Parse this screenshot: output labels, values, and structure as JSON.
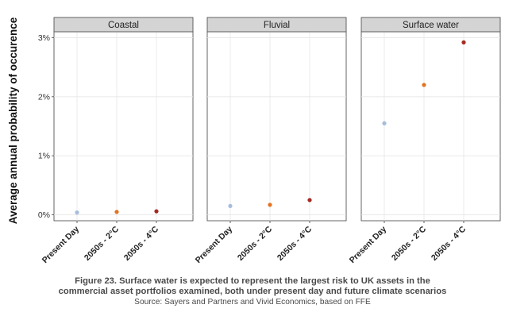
{
  "chart_data": {
    "type": "scatter",
    "ylabel": "Average annual probability of occurence",
    "ylim": [
      -0.1,
      3.1
    ],
    "yticks": [
      "0%",
      "1%",
      "2%",
      "3%"
    ],
    "ytick_values": [
      0,
      1,
      2,
      3
    ],
    "categories": [
      "Present Day",
      "2050s - 2°C",
      "2050s - 4°C"
    ],
    "point_colors": [
      "#a6bddb",
      "#e3731f",
      "#a52a22"
    ],
    "grid": true,
    "panels": [
      {
        "title": "Coastal",
        "values": [
          0.04,
          0.05,
          0.06
        ]
      },
      {
        "title": "Fluvial",
        "values": [
          0.15,
          0.17,
          0.25
        ]
      },
      {
        "title": "Surface water",
        "values": [
          1.55,
          2.2,
          2.92
        ]
      }
    ]
  },
  "caption": {
    "line1": "Figure 23. Surface water is expected to represent the largest risk to UK assets in the",
    "line2": "commercial asset portfolios examined, both under present day and future climate scenarios",
    "source": "Source: Sayers and Partners and Vivid Economics, based on FFE"
  }
}
